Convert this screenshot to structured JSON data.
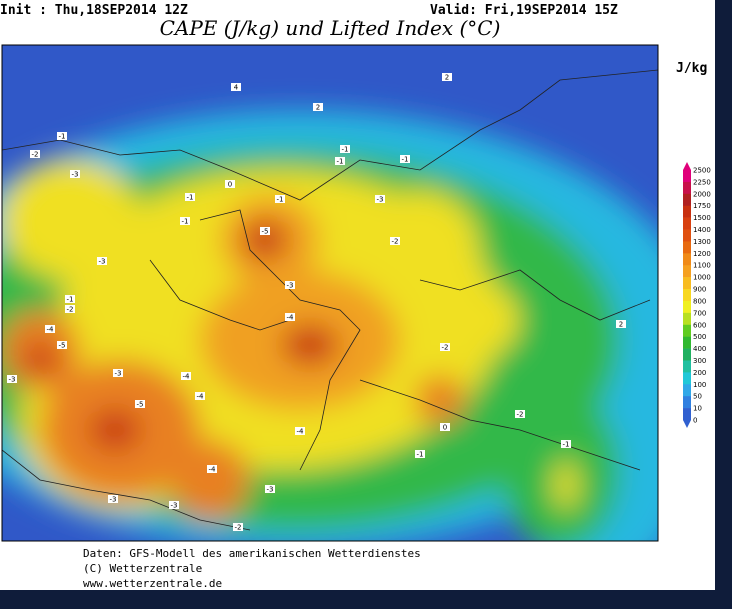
{
  "header": {
    "init": "Init : Thu,18SEP2014 12Z",
    "valid": "Valid: Fri,19SEP2014 15Z",
    "title": "CAPE (J/kg) und Lifted Index (°C)"
  },
  "legend": {
    "unit": "J/kg",
    "levels": [
      2500,
      2250,
      2000,
      1750,
      1500,
      1400,
      1300,
      1200,
      1100,
      1000,
      900,
      800,
      700,
      600,
      500,
      400,
      300,
      200,
      100,
      50,
      10,
      0
    ],
    "colors": [
      "#e0007a",
      "#c8104a",
      "#b02020",
      "#c83010",
      "#d84010",
      "#e05010",
      "#e86a10",
      "#f08a18",
      "#f5a020",
      "#f8bc20",
      "#f8d820",
      "#f0f020",
      "#b8e020",
      "#60cc20",
      "#30b830",
      "#20b060",
      "#20c0a0",
      "#20c8d8",
      "#30a8e8",
      "#3080e0",
      "#3060d0"
    ]
  },
  "lifted_index_labels": [
    4,
    2,
    2,
    -1,
    -2,
    -3,
    -1,
    -1,
    -5,
    -3,
    -1,
    -2,
    -4,
    -5,
    -3,
    -3,
    -4,
    -4,
    -5,
    -4,
    -3,
    -3,
    -2,
    -1,
    -1,
    -1,
    -2,
    -3,
    -4,
    -3,
    -4,
    -1,
    -2,
    2,
    -1,
    -3,
    -2,
    -1,
    0,
    0
  ],
  "footer": [
    "Daten: GFS-Modell des amerikanischen Wetterdienstes",
    "(C) Wetterzentrale",
    "www.wetterzentrale.de"
  ]
}
